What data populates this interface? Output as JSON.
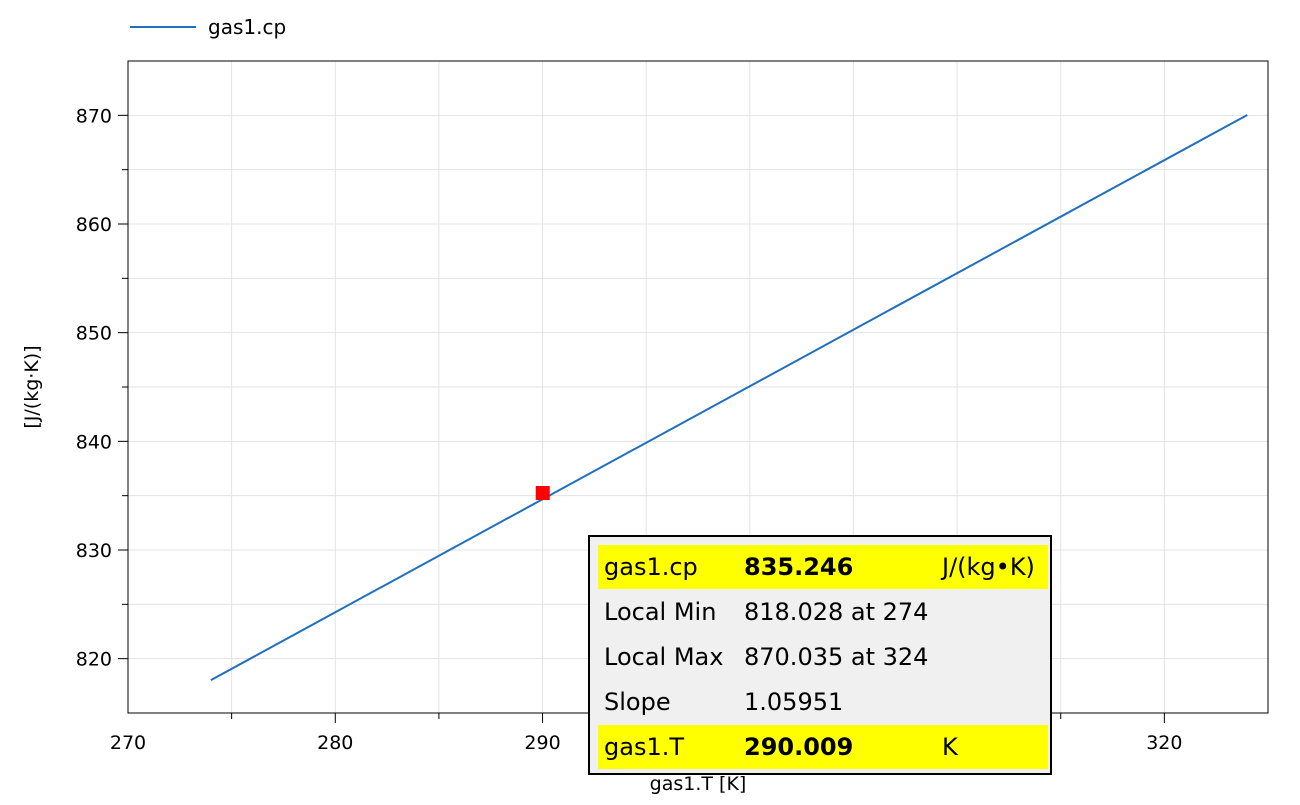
{
  "chart_data": {
    "type": "line",
    "xlabel": "gas1.T [K]",
    "ylabel": "[J/(kg·K)]",
    "xlim": [
      270,
      325
    ],
    "ylim": [
      815,
      875
    ],
    "x_ticks": [
      270,
      280,
      290,
      300,
      310,
      320
    ],
    "x_tick_labels": [
      "270",
      "280",
      "290",
      "",
      "",
      "320"
    ],
    "y_ticks": [
      820,
      830,
      840,
      850,
      860,
      870
    ],
    "y_tick_labels": [
      "820",
      "830",
      "840",
      "850",
      "860",
      "870"
    ],
    "grid": true,
    "legend": "top-left",
    "series": [
      {
        "name": "gas1.cp",
        "color": "#1f6fbf",
        "x": [
          274,
          324
        ],
        "y": [
          818.028,
          870.035
        ]
      }
    ],
    "marker": {
      "x": 290.009,
      "y": 835.246,
      "color": "#ff0000"
    }
  },
  "tooltip": {
    "rows": [
      {
        "label": "gas1.cp",
        "value": "835.246",
        "unit": "J/(kg•K)",
        "highlight": true
      },
      {
        "label": "Local Min",
        "value": "818.028 at 274",
        "unit": "",
        "highlight": false
      },
      {
        "label": "Local Max",
        "value": "870.035 at 324",
        "unit": "",
        "highlight": false
      },
      {
        "label": "Slope",
        "value": "1.05951",
        "unit": "",
        "highlight": false
      },
      {
        "label": "gas1.T",
        "value": "290.009",
        "unit": "K",
        "highlight": true
      }
    ]
  }
}
